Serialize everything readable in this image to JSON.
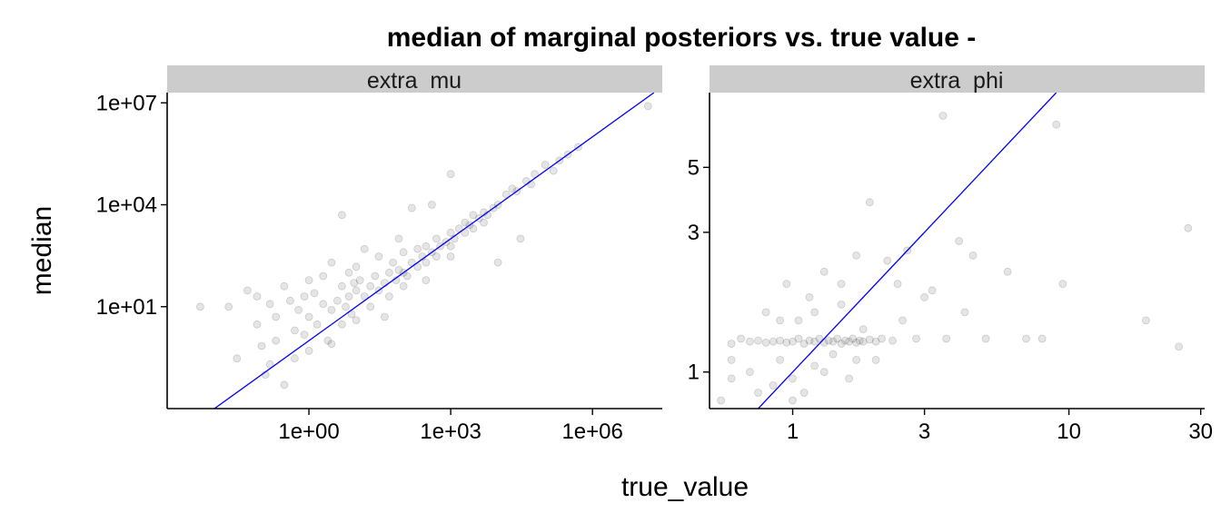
{
  "chart_data": {
    "type": "scatter",
    "title": "median of marginal posteriors vs. true value -",
    "xlabel": "true_value",
    "ylabel": "median",
    "reference_line": "y = x",
    "reference_line_color": "#0000ff",
    "point_color": "#333333",
    "strip_color": "#cccccc",
    "facets": [
      {
        "label": "extra  mu",
        "x_scale": "log10",
        "y_scale": "log10",
        "xlim": [
          0.001,
          30000000
        ],
        "ylim": [
          0.01,
          20000000
        ],
        "x_ticks": [
          {
            "value": 1,
            "label": "1e+00"
          },
          {
            "value": 1000,
            "label": "1e+03"
          },
          {
            "value": 1000000,
            "label": "1e+06"
          }
        ],
        "y_ticks": [
          {
            "value": 10,
            "label": "1e+01"
          },
          {
            "value": 10000,
            "label": "1e+04"
          },
          {
            "value": 10000000,
            "label": "1e+07"
          }
        ],
        "points": [
          [
            0.005,
            10
          ],
          [
            0.02,
            10
          ],
          [
            0.03,
            0.3
          ],
          [
            0.05,
            30
          ],
          [
            0.08,
            3
          ],
          [
            0.1,
            0.7
          ],
          [
            0.12,
            0.1
          ],
          [
            0.15,
            0.2
          ],
          [
            0.2,
            1
          ],
          [
            0.2,
            5
          ],
          [
            0.3,
            40
          ],
          [
            0.3,
            0.05
          ],
          [
            0.4,
            15
          ],
          [
            0.5,
            2
          ],
          [
            0.5,
            0.3
          ],
          [
            0.6,
            8
          ],
          [
            0.8,
            20
          ],
          [
            0.8,
            1.5
          ],
          [
            1,
            60
          ],
          [
            1,
            5
          ],
          [
            1,
            0.5
          ],
          [
            1.3,
            25
          ],
          [
            1.5,
            3
          ],
          [
            2,
            12
          ],
          [
            2,
            80
          ],
          [
            2.5,
            1
          ],
          [
            3,
            8
          ],
          [
            3,
            200
          ],
          [
            4,
            15
          ],
          [
            5,
            40
          ],
          [
            5,
            5000
          ],
          [
            5,
            3
          ],
          [
            6,
            10
          ],
          [
            7,
            20
          ],
          [
            8,
            6
          ],
          [
            10,
            30
          ],
          [
            10,
            150
          ],
          [
            10,
            4
          ],
          [
            12,
            60
          ],
          [
            15,
            20
          ],
          [
            15,
            500
          ],
          [
            20,
            40
          ],
          [
            20,
            10
          ],
          [
            25,
            80
          ],
          [
            30,
            30
          ],
          [
            30,
            300
          ],
          [
            40,
            50
          ],
          [
            50,
            100
          ],
          [
            50,
            20
          ],
          [
            60,
            200
          ],
          [
            70,
            60
          ],
          [
            80,
            120
          ],
          [
            100,
            100
          ],
          [
            100,
            400
          ],
          [
            100,
            40
          ],
          [
            120,
            80
          ],
          [
            150,
            200
          ],
          [
            150,
            8000
          ],
          [
            200,
            150
          ],
          [
            200,
            500
          ],
          [
            250,
            300
          ],
          [
            300,
            200
          ],
          [
            300,
            600
          ],
          [
            400,
            400
          ],
          [
            500,
            300
          ],
          [
            500,
            1000
          ],
          [
            600,
            600
          ],
          [
            800,
            800
          ],
          [
            1000,
            600
          ],
          [
            1000,
            1500
          ],
          [
            1000,
            300
          ],
          [
            1200,
            1000
          ],
          [
            1500,
            2000
          ],
          [
            2000,
            1500
          ],
          [
            2000,
            3000
          ],
          [
            2500,
            2500
          ],
          [
            3000,
            2000
          ],
          [
            3000,
            5000
          ],
          [
            4000,
            4000
          ],
          [
            5000,
            3000
          ],
          [
            5000,
            6000
          ],
          [
            6000,
            5000
          ],
          [
            8000,
            8000
          ],
          [
            10000,
            10000
          ],
          [
            10000,
            200
          ],
          [
            15000,
            20000
          ],
          [
            20000,
            30000
          ],
          [
            25000,
            25000
          ],
          [
            40000,
            50000
          ],
          [
            50000,
            40000
          ],
          [
            60000,
            80000
          ],
          [
            100000,
            150000
          ],
          [
            150000,
            100000
          ],
          [
            200000,
            200000
          ],
          [
            300000,
            300000
          ],
          [
            500000,
            500000
          ],
          [
            15000000,
            8000000
          ],
          [
            30000,
            1000
          ],
          [
            300,
            60
          ],
          [
            1000,
            80000
          ],
          [
            3,
            0.8
          ],
          [
            40,
            5
          ],
          [
            7,
            100
          ],
          [
            0.15,
            12
          ],
          [
            0.08,
            20
          ],
          [
            400,
            10000
          ],
          [
            80,
            1000
          ],
          [
            9,
            50
          ]
        ]
      },
      {
        "label": "extra  phi",
        "x_scale": "log10",
        "y_scale": "log10",
        "xlim": [
          0.5,
          31
        ],
        "ylim": [
          0.75,
          9
        ],
        "x_ticks": [
          {
            "value": 1,
            "label": "1"
          },
          {
            "value": 3,
            "label": "3"
          },
          {
            "value": 10,
            "label": "10"
          },
          {
            "value": 30,
            "label": "30"
          }
        ],
        "y_ticks": [
          {
            "value": 1,
            "label": "1"
          },
          {
            "value": 3,
            "label": "3"
          },
          {
            "value": 5,
            "label": "5"
          }
        ],
        "points": [
          [
            0.55,
            0.8
          ],
          [
            0.6,
            1.25
          ],
          [
            0.6,
            1.1
          ],
          [
            0.65,
            1.3
          ],
          [
            0.7,
            1.27
          ],
          [
            0.7,
            1.0
          ],
          [
            0.75,
            1.28
          ],
          [
            0.75,
            0.85
          ],
          [
            0.8,
            1.26
          ],
          [
            0.8,
            1.6
          ],
          [
            0.85,
            1.27
          ],
          [
            0.85,
            0.9
          ],
          [
            0.9,
            1.28
          ],
          [
            0.9,
            1.1
          ],
          [
            0.95,
            1.26
          ],
          [
            0.95,
            2.0
          ],
          [
            1.0,
            1.27
          ],
          [
            1.0,
            0.95
          ],
          [
            1.05,
            1.3
          ],
          [
            1.05,
            1.5
          ],
          [
            1.1,
            1.25
          ],
          [
            1.1,
            0.85
          ],
          [
            1.15,
            1.28
          ],
          [
            1.15,
            1.8
          ],
          [
            1.2,
            1.27
          ],
          [
            1.2,
            1.05
          ],
          [
            1.25,
            1.3
          ],
          [
            1.3,
            1.26
          ],
          [
            1.3,
            2.2
          ],
          [
            1.35,
            1.28
          ],
          [
            1.4,
            1.27
          ],
          [
            1.4,
            1.15
          ],
          [
            1.45,
            1.3
          ],
          [
            1.5,
            1.25
          ],
          [
            1.5,
            1.7
          ],
          [
            1.55,
            1.28
          ],
          [
            1.6,
            1.27
          ],
          [
            1.6,
            0.95
          ],
          [
            1.65,
            1.3
          ],
          [
            1.7,
            1.26
          ],
          [
            1.7,
            2.5
          ],
          [
            1.75,
            1.28
          ],
          [
            1.8,
            1.27
          ],
          [
            1.8,
            1.4
          ],
          [
            1.9,
            3.8
          ],
          [
            1.9,
            1.29
          ],
          [
            2.0,
            1.27
          ],
          [
            2.0,
            1.1
          ],
          [
            2.1,
            1.3
          ],
          [
            2.2,
            2.4
          ],
          [
            2.3,
            1.28
          ],
          [
            2.5,
            1.5
          ],
          [
            2.6,
            2.6
          ],
          [
            2.8,
            1.3
          ],
          [
            3.0,
            1.8
          ],
          [
            3.2,
            1.9
          ],
          [
            3.5,
            7.5
          ],
          [
            3.6,
            1.3
          ],
          [
            4.0,
            2.8
          ],
          [
            4.2,
            1.6
          ],
          [
            4.5,
            2.5
          ],
          [
            5.0,
            1.3
          ],
          [
            6.0,
            2.2
          ],
          [
            7.0,
            1.3
          ],
          [
            8.0,
            1.3
          ],
          [
            9.0,
            7.0
          ],
          [
            9.5,
            2.0
          ],
          [
            19,
            1.5
          ],
          [
            25,
            1.22
          ],
          [
            27,
            3.1
          ],
          [
            0.6,
            0.95
          ],
          [
            0.9,
            1.5
          ],
          [
            1.2,
            1.6
          ],
          [
            1.5,
            2.0
          ],
          [
            2.4,
            2.0
          ],
          [
            1.0,
            0.8
          ],
          [
            1.3,
            1.0
          ],
          [
            1.7,
            1.1
          ]
        ]
      }
    ]
  }
}
